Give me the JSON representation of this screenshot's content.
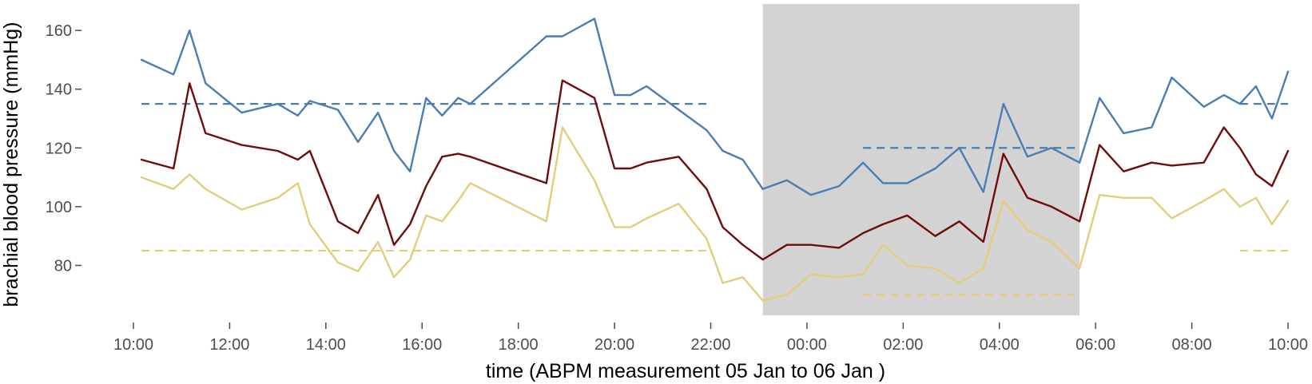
{
  "chart_data": {
    "type": "line",
    "title": "",
    "xlabel": "time (ABPM measurement 05 Jan to 06 Jan )",
    "ylabel": "brachial blood pressure (mmHg)",
    "xlim": [
      "2024-01-05 10:00",
      "2024-01-06 10:00"
    ],
    "ylim": [
      63,
      169
    ],
    "grid": false,
    "legend": "none",
    "x_tick_labels": [
      "10:00",
      "12:00",
      "14:00",
      "16:00",
      "18:00",
      "20:00",
      "22:00",
      "00:00",
      "02:00",
      "04:00",
      "06:00",
      "08:00",
      "10:00"
    ],
    "y_tick_labels": [
      "80",
      "100",
      "120",
      "140",
      "160"
    ],
    "y_ticks": [
      80,
      100,
      120,
      140,
      160
    ],
    "night_shading": {
      "start": "2024-01-05 23:05",
      "end": "2024-01-06 05:40",
      "color": "#d3d3d3"
    },
    "x": [
      "2024-01-05 10:10",
      "2024-01-05 10:50",
      "2024-01-05 11:10",
      "2024-01-05 11:30",
      "2024-01-05 12:15",
      "2024-01-05 13:00",
      "2024-01-05 13:25",
      "2024-01-05 13:40",
      "2024-01-05 14:15",
      "2024-01-05 14:40",
      "2024-01-05 15:05",
      "2024-01-05 15:25",
      "2024-01-05 15:45",
      "2024-01-05 16:05",
      "2024-01-05 16:25",
      "2024-01-05 16:45",
      "2024-01-05 17:00",
      "2024-01-05 18:35",
      "2024-01-05 18:55",
      "2024-01-05 19:35",
      "2024-01-05 20:00",
      "2024-01-05 20:20",
      "2024-01-05 20:40",
      "2024-01-05 21:20",
      "2024-01-05 21:55",
      "2024-01-05 22:15",
      "2024-01-05 22:40",
      "2024-01-05 23:05",
      "2024-01-05 23:35",
      "2024-01-06 00:05",
      "2024-01-06 00:40",
      "2024-01-06 01:10",
      "2024-01-06 01:35",
      "2024-01-06 02:05",
      "2024-01-06 02:40",
      "2024-01-06 03:10",
      "2024-01-06 03:40",
      "2024-01-06 04:05",
      "2024-01-06 04:35",
      "2024-01-06 05:05",
      "2024-01-06 05:40",
      "2024-01-06 06:05",
      "2024-01-06 06:35",
      "2024-01-06 07:10",
      "2024-01-06 07:35",
      "2024-01-06 08:15",
      "2024-01-06 08:40",
      "2024-01-06 09:00",
      "2024-01-06 09:20",
      "2024-01-06 09:40",
      "2024-01-06 10:00"
    ],
    "series": [
      {
        "color": "#4a7eb3",
        "values": [
          150,
          145,
          160,
          142,
          132,
          135,
          131,
          136,
          133,
          122,
          132,
          119,
          112,
          137,
          131,
          137,
          135,
          158,
          158,
          164,
          138,
          138,
          141,
          133,
          126,
          119,
          116,
          106,
          109,
          104,
          107,
          115,
          108,
          108,
          113,
          120,
          105,
          135,
          117,
          120,
          115,
          137,
          125,
          127,
          144,
          134,
          138,
          135,
          141,
          130,
          146
        ]
      },
      {
        "color": "#6e0d0a",
        "values": [
          116,
          113,
          142,
          125,
          121,
          119,
          116,
          119,
          95,
          91,
          104,
          87,
          94,
          107,
          117,
          118,
          117,
          108,
          143,
          137,
          113,
          113,
          115,
          117,
          106,
          93,
          87,
          82,
          87,
          87,
          86,
          91,
          94,
          97,
          90,
          95,
          88,
          118,
          103,
          100,
          95,
          121,
          112,
          115,
          114,
          115,
          127,
          120,
          111,
          107,
          119
        ]
      },
      {
        "color": "#e3cd7a",
        "values": [
          110,
          106,
          111,
          106,
          99,
          103,
          108,
          94,
          81,
          78,
          88,
          76,
          82,
          97,
          95,
          102,
          108,
          95,
          127,
          109,
          93,
          93,
          96,
          101,
          89,
          74,
          76,
          68,
          70,
          77,
          76,
          77,
          87,
          80,
          79,
          74,
          79,
          102,
          92,
          88,
          79,
          104,
          103,
          103,
          96,
          102,
          106,
          100,
          103,
          94,
          102
        ]
      }
    ],
    "reference_lines": [
      {
        "color": "#4a7eb3",
        "value": 135,
        "x_start": "2024-01-05 10:10",
        "x_end": "2024-01-05 21:55",
        "style": "dashed"
      },
      {
        "color": "#4a7eb3",
        "value": 120,
        "x_start": "2024-01-06 01:10",
        "x_end": "2024-01-06 05:40",
        "style": "dashed"
      },
      {
        "color": "#4a7eb3",
        "value": 135,
        "x_start": "2024-01-06 09:00",
        "x_end": "2024-01-06 10:00",
        "style": "dashed"
      },
      {
        "color": "#e3cd7a",
        "value": 85,
        "x_start": "2024-01-05 10:10",
        "x_end": "2024-01-05 21:55",
        "style": "dashed"
      },
      {
        "color": "#e3cd7a",
        "value": 70,
        "x_start": "2024-01-06 01:10",
        "x_end": "2024-01-06 05:40",
        "style": "dashed"
      },
      {
        "color": "#e3cd7a",
        "value": 85,
        "x_start": "2024-01-06 09:00",
        "x_end": "2024-01-06 10:00",
        "style": "dashed"
      }
    ]
  }
}
